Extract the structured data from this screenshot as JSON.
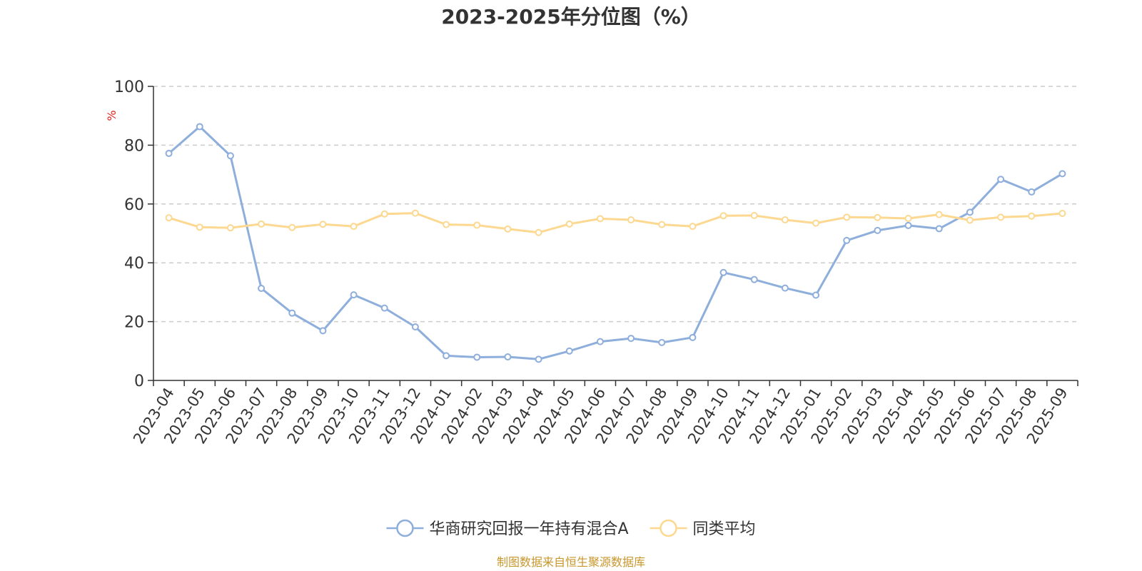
{
  "chart_data": {
    "type": "line",
    "title": "2023-2025年分位图（%）",
    "ylabel": "%",
    "xlabel": "",
    "ylim": [
      0,
      100
    ],
    "yticks": [
      0,
      20,
      40,
      60,
      80,
      100
    ],
    "grid": true,
    "legend_position": "bottom-center",
    "categories": [
      "2023-04",
      "2023-05",
      "2023-06",
      "2023-07",
      "2023-08",
      "2023-09",
      "2023-10",
      "2023-11",
      "2023-12",
      "2024-01",
      "2024-02",
      "2024-03",
      "2024-04",
      "2024-05",
      "2024-06",
      "2024-07",
      "2024-08",
      "2024-09",
      "2024-10",
      "2024-11",
      "2024-12",
      "2025-01",
      "2025-02",
      "2025-03",
      "2025-04",
      "2025-05",
      "2025-06",
      "2025-07",
      "2025-08",
      "2025-09"
    ],
    "series": [
      {
        "name": "华商研究回报一年持有混合A",
        "color": "#8eaedb",
        "values": [
          77.2,
          86.3,
          76.4,
          31.3,
          22.9,
          16.9,
          29.1,
          24.6,
          18.2,
          8.4,
          7.9,
          8.0,
          7.2,
          10.0,
          13.2,
          14.3,
          12.9,
          14.6,
          36.7,
          34.3,
          31.4,
          29.0,
          47.6,
          51.0,
          52.7,
          51.6,
          57.2,
          68.4,
          64.1,
          70.3
        ]
      },
      {
        "name": "同类平均",
        "color": "#fcd890",
        "values": [
          55.3,
          52.1,
          51.9,
          53.2,
          52.0,
          53.1,
          52.4,
          56.6,
          56.9,
          53.0,
          52.8,
          51.5,
          50.3,
          53.2,
          55.0,
          54.6,
          53.0,
          52.4,
          56.0,
          56.1,
          54.6,
          53.5,
          55.5,
          55.4,
          55.1,
          56.4,
          54.5,
          55.5,
          55.9,
          56.8
        ]
      }
    ]
  },
  "colors": {
    "axis": "#333333",
    "grid": "#cccccc",
    "unit_label": "#e0211d",
    "source": "#c8972c"
  },
  "footer": {
    "source_text": "制图数据来自恒生聚源数据库"
  }
}
